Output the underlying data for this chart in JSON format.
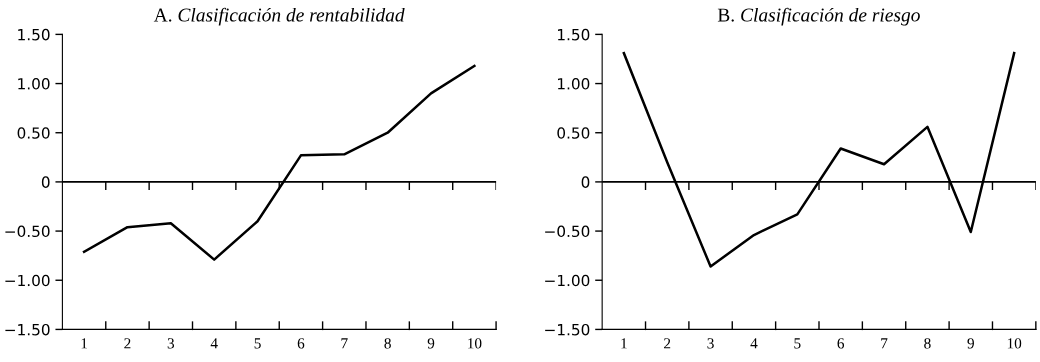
{
  "chart_data": [
    {
      "type": "line",
      "title": "A. Clasificación de rentabilidad",
      "categories": [
        "1",
        "2",
        "3",
        "4",
        "5",
        "6",
        "7",
        "8",
        "9",
        "10"
      ],
      "series": [
        {
          "color": "#000000",
          "values": [
            -0.71,
            -0.46,
            -0.42,
            -0.79,
            -0.4,
            0.27,
            0.28,
            0.5,
            0.9,
            1.18
          ]
        }
      ],
      "ylim": [
        -1.5,
        1.5
      ],
      "yticks": [
        {
          "value": -1.5,
          "label": "−1.50"
        },
        {
          "value": -1,
          "label": "−1.00"
        },
        {
          "value": -0.5,
          "label": "−0.50"
        },
        0,
        {
          "value": 0.5,
          "label": "0.50"
        },
        {
          "value": 1,
          "label": "1.00"
        },
        {
          "value": 1.5,
          "label": "1.50"
        }
      ],
      "ref_lines": [
        {
          "axis": "y",
          "value": 0,
          "color": "#000000"
        }
      ],
      "grid": false,
      "marker": "none",
      "line_style": "solid"
    },
    {
      "type": "line",
      "title": "B. Clasificación de riesgo",
      "categories": [
        "1",
        "2",
        "3",
        "4",
        "5",
        "6",
        "7",
        "8",
        "9",
        "10"
      ],
      "series": [
        {
          "color": "#000000",
          "values": [
            1.31,
            0.2,
            -0.86,
            -0.54,
            -0.33,
            0.34,
            0.18,
            0.56,
            -0.51,
            1.31
          ]
        }
      ],
      "ylim": [
        -1.5,
        1.5
      ],
      "yticks": [
        {
          "value": -1.5,
          "label": "−1.50"
        },
        {
          "value": -1,
          "label": "−1.00"
        },
        {
          "value": -0.5,
          "label": "−0.50"
        },
        0,
        {
          "value": 0.5,
          "label": "0.50"
        },
        {
          "value": 1,
          "label": "1.00"
        },
        {
          "value": 1.5,
          "label": "1.50"
        }
      ],
      "ref_lines": [
        {
          "axis": "y",
          "value": 0,
          "color": "#000000"
        }
      ],
      "grid": false,
      "marker": "none",
      "line_style": "solid"
    }
  ]
}
